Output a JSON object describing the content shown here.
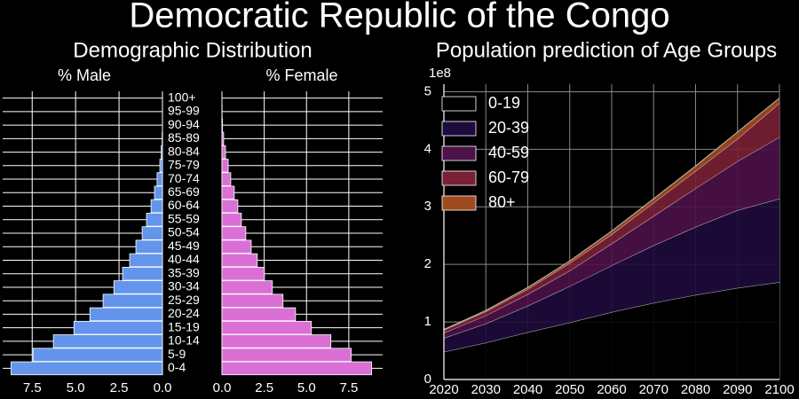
{
  "title": "Democratic Republic of the Congo",
  "chart_data": [
    {
      "type": "pyramid",
      "title": "Demographic Distribution",
      "categories": [
        "0-4",
        "5-9",
        "10-14",
        "15-19",
        "20-24",
        "25-29",
        "30-34",
        "35-39",
        "40-44",
        "45-49",
        "50-54",
        "55-59",
        "60-64",
        "65-69",
        "70-74",
        "75-79",
        "80-84",
        "85-89",
        "90-94",
        "95-99",
        "100+"
      ],
      "xticks": [
        {
          "value": 0,
          "label": "0.0"
        },
        2.5,
        {
          "value": 5,
          "label": "5.0"
        },
        7.5
      ],
      "grid": true,
      "series": [
        {
          "name": "% Male",
          "color": "#6495ed",
          "xlim": [
            0,
            9.2
          ],
          "values": [
            8.72,
            7.45,
            6.28,
            5.1,
            4.18,
            3.42,
            2.8,
            2.3,
            1.89,
            1.53,
            1.17,
            0.92,
            0.66,
            0.46,
            0.31,
            0.15,
            0.07,
            0.02,
            0.005,
            0,
            0
          ]
        },
        {
          "name": "% Female",
          "color": "#da70d6",
          "xlim": [
            0,
            9.5
          ],
          "values": [
            8.85,
            7.64,
            6.44,
            5.29,
            4.35,
            3.61,
            2.98,
            2.51,
            2.09,
            1.73,
            1.41,
            1.15,
            0.94,
            0.73,
            0.52,
            0.37,
            0.21,
            0.1,
            0.03,
            0.01,
            0
          ]
        }
      ]
    },
    {
      "type": "stacked_area",
      "title": "Population prediction of Age Groups",
      "x": [
        2020,
        2030,
        2040,
        2050,
        2060,
        2070,
        2080,
        2090,
        2100
      ],
      "xlim": [
        2020,
        2100
      ],
      "xticks": [
        2020,
        2030,
        2040,
        2050,
        2060,
        2070,
        2080,
        2090,
        2100
      ],
      "ylim": [
        0,
        5.13
      ],
      "yticks": [
        0,
        1,
        2,
        3,
        4,
        5
      ],
      "y_offset_label": "1e8",
      "grid": true,
      "legend": "upper left",
      "series": [
        {
          "name": "0-19",
          "color": "#000000",
          "values": [
            0.48,
            0.64,
            0.82,
            0.99,
            1.17,
            1.33,
            1.47,
            1.59,
            1.69
          ]
        },
        {
          "name": "20-39",
          "color": "#1e0a3c",
          "values": [
            0.24,
            0.33,
            0.46,
            0.63,
            0.81,
            1.0,
            1.18,
            1.35,
            1.45
          ]
        },
        {
          "name": "40-59",
          "color": "#4c1148",
          "values": [
            0.09,
            0.14,
            0.2,
            0.27,
            0.38,
            0.51,
            0.67,
            0.85,
            1.07
          ]
        },
        {
          "name": "60-79",
          "color": "#7a2035",
          "values": [
            0.05,
            0.07,
            0.09,
            0.13,
            0.16,
            0.23,
            0.3,
            0.39,
            0.59
          ]
        },
        {
          "name": "80+",
          "color": "#a04a1f",
          "values": [
            0.01,
            0.02,
            0.03,
            0.04,
            0.06,
            0.07,
            0.09,
            0.12,
            0.09
          ]
        }
      ]
    }
  ]
}
